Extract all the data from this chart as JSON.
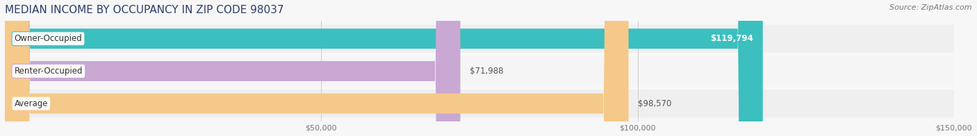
{
  "title": "MEDIAN INCOME BY OCCUPANCY IN ZIP CODE 98037",
  "source": "Source: ZipAtlas.com",
  "categories": [
    "Owner-Occupied",
    "Renter-Occupied",
    "Average"
  ],
  "values": [
    119794,
    71988,
    98570
  ],
  "labels": [
    "$119,794",
    "$71,988",
    "$98,570"
  ],
  "bar_colors": [
    "#3bbfbf",
    "#c9a8d4",
    "#f5c98a"
  ],
  "label_inside": [
    true,
    false,
    false
  ],
  "background_color": "#f7f7f7",
  "row_bg_colors": [
    "#efefef",
    "#f5f5f5",
    "#efefef"
  ],
  "xlim": [
    0,
    150000
  ],
  "xticks": [
    50000,
    100000,
    150000
  ],
  "xticklabels": [
    "$50,000",
    "$100,000",
    "$150,000"
  ],
  "title_fontsize": 11,
  "source_fontsize": 8,
  "label_fontsize": 8.5,
  "category_fontsize": 8.5,
  "tick_fontsize": 8
}
